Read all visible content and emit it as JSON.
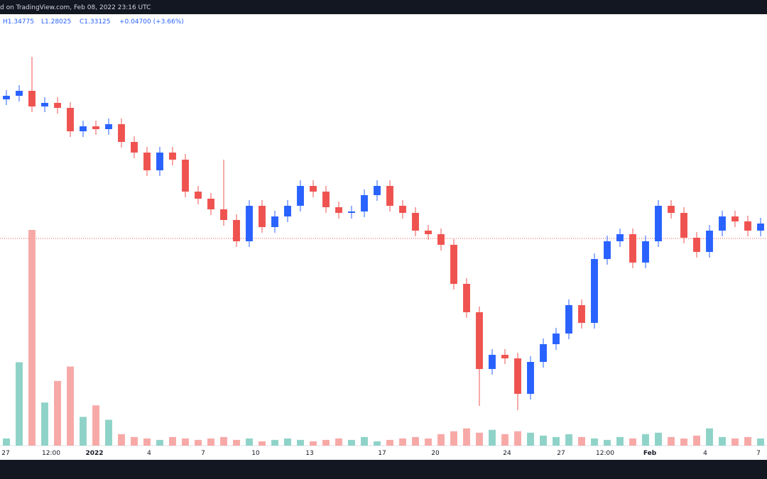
{
  "source": "d on TradingView.com, Feb 08, 2022 23:16 UTC",
  "chart_data": {
    "type": "candlestick",
    "ohlc_header": [
      "H1.34775",
      "L1.28025",
      "C1.33125",
      "+0.04700 (+3.66%)"
    ],
    "open": [
      1.44,
      1.4425,
      1.446,
      1.435,
      1.4375,
      1.434,
      1.4175,
      1.421,
      1.419,
      1.4225,
      1.41,
      1.4025,
      1.39,
      1.4025,
      1.3975,
      1.375,
      1.37,
      1.3625,
      1.355,
      1.34,
      1.365,
      1.35,
      1.3575,
      1.365,
      1.379,
      1.375,
      1.364,
      1.36,
      1.361,
      1.3725,
      1.379,
      1.365,
      1.36,
      1.3475,
      1.345,
      1.3375,
      1.31,
      1.29,
      1.25,
      1.26,
      1.2575,
      1.2325,
      1.255,
      1.2675,
      1.275,
      1.295,
      1.2825,
      1.3275,
      1.34,
      1.345,
      1.325,
      1.34,
      1.365,
      1.36,
      1.3425,
      1.3325,
      1.3475,
      1.3575,
      1.354,
      1.3475
    ],
    "high": [
      1.4465,
      1.45,
      1.47,
      1.4415,
      1.4415,
      1.438,
      1.425,
      1.425,
      1.4265,
      1.4265,
      1.414,
      1.4065,
      1.4065,
      1.4065,
      1.4015,
      1.379,
      1.374,
      1.3975,
      1.359,
      1.369,
      1.369,
      1.3615,
      1.369,
      1.383,
      1.383,
      1.379,
      1.368,
      1.365,
      1.3765,
      1.383,
      1.383,
      1.369,
      1.364,
      1.3515,
      1.349,
      1.3415,
      1.314,
      1.294,
      1.264,
      1.264,
      1.2615,
      1.259,
      1.2715,
      1.279,
      1.299,
      1.299,
      1.3315,
      1.344,
      1.349,
      1.349,
      1.344,
      1.369,
      1.369,
      1.364,
      1.3465,
      1.3515,
      1.3615,
      1.3615,
      1.358,
      1.3565
    ],
    "low": [
      1.436,
      1.4385,
      1.431,
      1.431,
      1.43,
      1.4135,
      1.4135,
      1.415,
      1.415,
      1.406,
      1.3985,
      1.386,
      1.386,
      1.3935,
      1.371,
      1.366,
      1.3585,
      1.351,
      1.336,
      1.336,
      1.346,
      1.346,
      1.3535,
      1.361,
      1.371,
      1.36,
      1.356,
      1.356,
      1.357,
      1.3685,
      1.361,
      1.356,
      1.3435,
      1.341,
      1.3335,
      1.306,
      1.286,
      1.224,
      1.246,
      1.2535,
      1.221,
      1.2285,
      1.251,
      1.2635,
      1.271,
      1.2785,
      1.2785,
      1.3235,
      1.336,
      1.321,
      1.321,
      1.336,
      1.356,
      1.3385,
      1.3285,
      1.3285,
      1.3435,
      1.35,
      1.3435,
      1.3435
    ],
    "close": [
      1.4425,
      1.446,
      1.435,
      1.4375,
      1.434,
      1.4175,
      1.421,
      1.419,
      1.4225,
      1.41,
      1.4025,
      1.39,
      1.4025,
      1.3975,
      1.375,
      1.37,
      1.3625,
      1.355,
      1.34,
      1.365,
      1.35,
      1.3575,
      1.365,
      1.379,
      1.375,
      1.364,
      1.36,
      1.361,
      1.3725,
      1.379,
      1.365,
      1.36,
      1.3475,
      1.345,
      1.3375,
      1.31,
      1.29,
      1.25,
      1.26,
      1.2575,
      1.2325,
      1.255,
      1.2675,
      1.275,
      1.295,
      1.2825,
      1.3275,
      1.34,
      1.345,
      1.325,
      1.34,
      1.365,
      1.36,
      1.3425,
      1.3325,
      1.3475,
      1.3575,
      1.354,
      1.3475,
      1.3525
    ],
    "volume": [
      5,
      58,
      150,
      30,
      45,
      55,
      20,
      28,
      18,
      8,
      6,
      5,
      4,
      6,
      5,
      4,
      5,
      6,
      4,
      5,
      3,
      4,
      5,
      4,
      3,
      4,
      5,
      4,
      6,
      3,
      4,
      5,
      6,
      5,
      8,
      10,
      12,
      9,
      11,
      8,
      10,
      9,
      7,
      6,
      8,
      6,
      5,
      4,
      6,
      5,
      8,
      9,
      6,
      5,
      7,
      12,
      6,
      5,
      6,
      5
    ],
    "ylim": [
      1.196,
      1.5
    ],
    "vlim": [
      0,
      300
    ],
    "price_line": 1.342,
    "up_color": "#2962ff",
    "down_color": "#ef5350",
    "vol_up_color": "#8fd3c8",
    "vol_down_color": "#f7a9a7",
    "x_labels": [
      "27",
      "12:00",
      "2022",
      "4",
      "7",
      "10",
      "13",
      "17",
      "20",
      "24",
      "27",
      "12:00",
      "Feb",
      "4",
      "7"
    ]
  }
}
